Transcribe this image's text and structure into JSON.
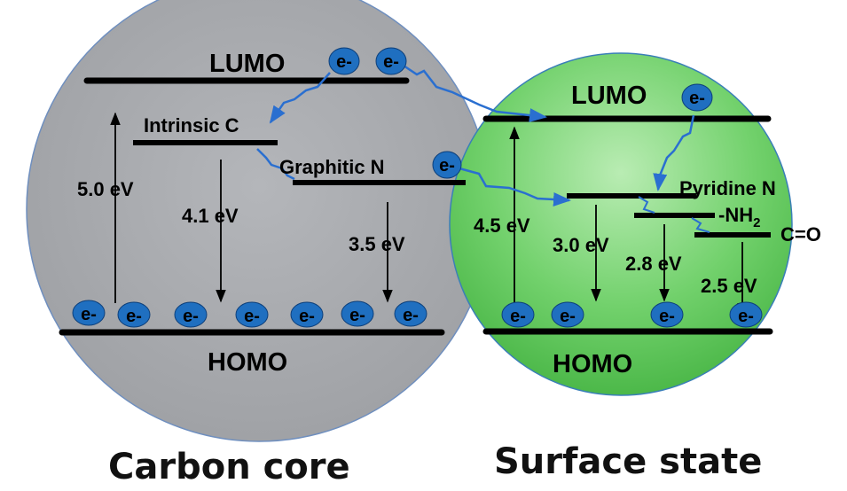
{
  "carbon_core": {
    "caption": "Carbon core",
    "lumo": "LUMO",
    "homo": "HOMO",
    "intrinsic": "Intrinsic C",
    "graphitic": "Graphitic N",
    "gap_lumo_homo": "5.0 eV",
    "gap_intrinsic": "4.1 eV",
    "gap_graphitic": "3.5 eV"
  },
  "surface_state": {
    "caption": "Surface state",
    "lumo": "LUMO",
    "homo": "HOMO",
    "pyridine": "Pyridine N",
    "nh2_prefix": "-NH",
    "nh2_sub": "2",
    "co": "C=O",
    "gap_lumo_homo": "4.5 eV",
    "gap_pyridine": "3.0 eV",
    "gap_nh2": "2.8 eV",
    "gap_co": "2.5 eV"
  },
  "electron_label": "e-",
  "colors": {
    "core_fill": "#a7a9ad",
    "surface_fill": "#6bd068",
    "electron": "#1f6fc0",
    "transfer_arrow": "#2a6fd0",
    "level_line": "#000000"
  }
}
